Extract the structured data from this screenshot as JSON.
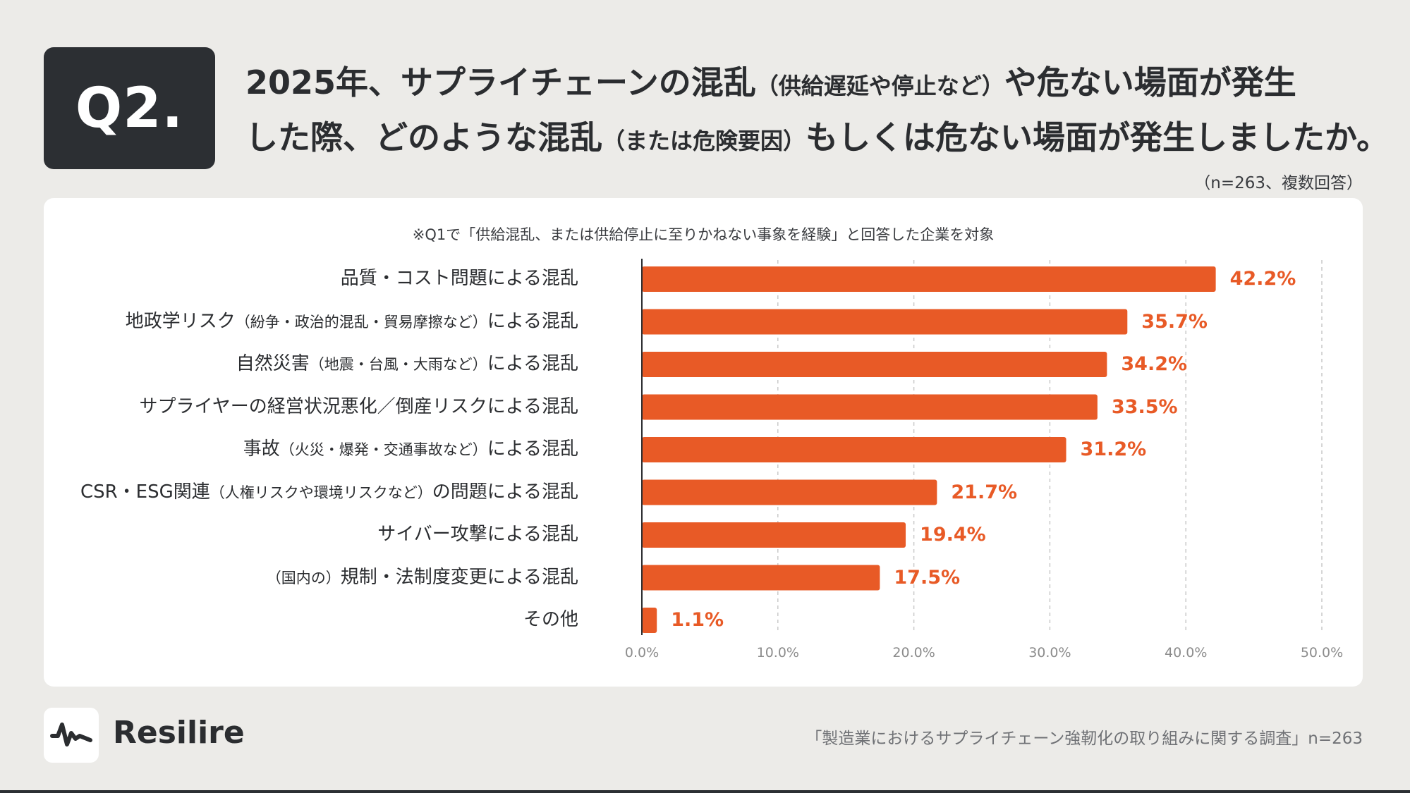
{
  "question_badge": "Q2.",
  "title": {
    "line1_a": "2025年、サプライチェーンの混乱",
    "line1_b": "（供給遅延や停止など）",
    "line1_c": "や危ない場面が発生",
    "line2_a": "した際、どのような混乱",
    "line2_b": "（または危険要因）",
    "line2_c": "もしくは危ない場面が発生しましたか。"
  },
  "meta": "（n=263、複数回答）",
  "note": "※Q1で「供給混乱、または供給停止に至りかねない事象を経験」と回答した企業を対象",
  "chart_data": {
    "type": "bar",
    "orientation": "horizontal",
    "categories": [
      "品質・コスト問題による混乱",
      "地政学リスク（紛争・政治的混乱・貿易摩擦など）による混乱",
      "自然災害（地震・台風・大雨など）による混乱",
      "サプライヤーの経営状況悪化／倒産リスクによる混乱",
      "事故（火災・爆発・交通事故など）による混乱",
      "CSR・ESG関連（人権リスクや環境リスクなど）の問題による混乱",
      "サイバー攻撃による混乱",
      "（国内の）規制・法制度変更による混乱",
      "その他"
    ],
    "category_display": [
      {
        "main": "品質・コスト問題による混乱",
        "pre": "",
        "paren": "",
        "post": ""
      },
      {
        "main": "",
        "pre": "地政学リスク",
        "paren": "（紛争・政治的混乱・貿易摩擦など）",
        "post": "による混乱"
      },
      {
        "main": "",
        "pre": "自然災害",
        "paren": "（地震・台風・大雨など）",
        "post": "による混乱"
      },
      {
        "main": "サプライヤーの経営状況悪化／倒産リスクによる混乱",
        "pre": "",
        "paren": "",
        "post": ""
      },
      {
        "main": "",
        "pre": "事故",
        "paren": "（火災・爆発・交通事故など）",
        "post": "による混乱"
      },
      {
        "main": "",
        "pre": "CSR・ESG関連",
        "paren": "（人権リスクや環境リスクなど）",
        "post": "の問題による混乱"
      },
      {
        "main": "サイバー攻撃による混乱",
        "pre": "",
        "paren": "",
        "post": ""
      },
      {
        "main": "",
        "pre": "",
        "paren": "（国内の）",
        "post": "規制・法制度変更による混乱"
      },
      {
        "main": "その他",
        "pre": "",
        "paren": "",
        "post": ""
      }
    ],
    "values": [
      42.2,
      35.7,
      34.2,
      33.5,
      31.2,
      21.7,
      19.4,
      17.5,
      1.1
    ],
    "value_labels": [
      "42.2%",
      "35.7%",
      "34.2%",
      "33.5%",
      "31.2%",
      "21.7%",
      "19.4%",
      "17.5%",
      "1.1%"
    ],
    "xlim": [
      0,
      50
    ],
    "ticks": [
      0,
      10,
      20,
      30,
      40,
      50
    ],
    "tick_labels": [
      "0.0%",
      "10.0%",
      "20.0%",
      "30.0%",
      "40.0%",
      "50.0%"
    ],
    "grid": true,
    "bar_color": "#e85a26",
    "xlabel": "",
    "ylabel": ""
  },
  "brand": "Resilire",
  "source": "「製造業におけるサプライチェーン強靭化の取り組みに関する調査」n=263"
}
